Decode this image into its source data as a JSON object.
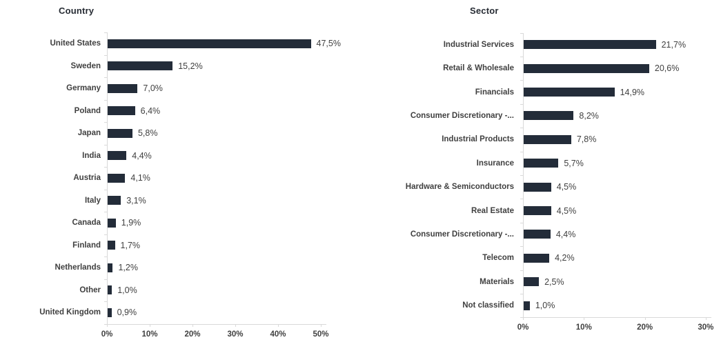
{
  "chart_data": [
    {
      "type": "bar",
      "orientation": "horizontal",
      "title": "Country",
      "categories": [
        "United States",
        "Sweden",
        "Germany",
        "Poland",
        "Japan",
        "India",
        "Austria",
        "Italy",
        "Canada",
        "Finland",
        "Netherlands",
        "Other",
        "United Kingdom"
      ],
      "values": [
        47.5,
        15.2,
        7.0,
        6.4,
        5.8,
        4.4,
        4.1,
        3.1,
        1.9,
        1.7,
        1.2,
        1.0,
        0.9
      ],
      "value_labels": [
        "47,5%",
        "15,2%",
        "7,0%",
        "6,4%",
        "5,8%",
        "4,4%",
        "4,1%",
        "3,1%",
        "1,9%",
        "1,7%",
        "1,2%",
        "1,0%",
        "0,9%"
      ],
      "xlim": [
        0,
        50
      ],
      "x_tick_step": 10,
      "x_tick_labels": [
        "0%",
        "10%",
        "20%",
        "30%",
        "40%",
        "50%"
      ],
      "grid": false,
      "legend": false,
      "bar_color": "#232c39",
      "axis_color": "#d9d9d9",
      "label_color": "#404040",
      "title_color": "#262b33"
    },
    {
      "type": "bar",
      "orientation": "horizontal",
      "title": "Sector",
      "categories": [
        "Industrial Services",
        "Retail & Wholesale",
        "Financials",
        "Consumer Discretionary -...",
        "Industrial Products",
        "Insurance",
        "Hardware & Semiconductors",
        "Real Estate",
        "Consumer Discretionary -...",
        "Telecom",
        "Materials",
        "Not classified"
      ],
      "values": [
        21.7,
        20.6,
        14.9,
        8.2,
        7.8,
        5.7,
        4.5,
        4.5,
        4.4,
        4.2,
        2.5,
        1.0
      ],
      "value_labels": [
        "21,7%",
        "20,6%",
        "14,9%",
        "8,2%",
        "7,8%",
        "5,7%",
        "4,5%",
        "4,5%",
        "4,4%",
        "4,2%",
        "2,5%",
        "1,0%"
      ],
      "xlim": [
        0,
        30
      ],
      "x_tick_step": 10,
      "x_tick_labels": [
        "0%",
        "10%",
        "20%",
        "30%"
      ],
      "grid": false,
      "legend": false,
      "bar_color": "#232c39",
      "axis_color": "#d9d9d9",
      "label_color": "#404040",
      "title_color": "#262b33"
    }
  ]
}
